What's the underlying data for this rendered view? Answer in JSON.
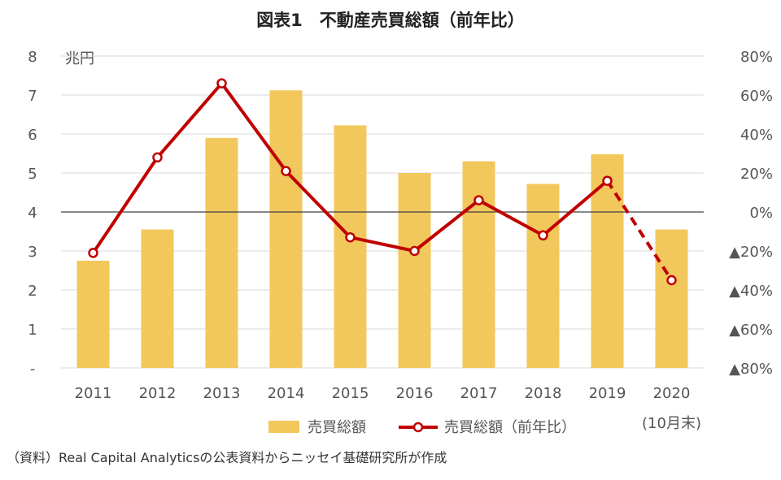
{
  "chart_data": {
    "type": "bar",
    "title": "図表1　不動産売買総額（前年比）",
    "unit_label": "兆円",
    "categories": [
      "2011",
      "2012",
      "2013",
      "2014",
      "2015",
      "2016",
      "2017",
      "2018",
      "2019",
      "2020"
    ],
    "category_note": "(10月末)",
    "left_axis": {
      "min": 0,
      "max": 8,
      "ticks": [
        "-",
        "1",
        "2",
        "3",
        "4",
        "5",
        "6",
        "7",
        "8"
      ]
    },
    "right_axis": {
      "min": -80,
      "max": 80,
      "ticks": [
        "▲80%",
        "▲60%",
        "▲40%",
        "▲20%",
        "0%",
        "20%",
        "40%",
        "60%",
        "80%"
      ]
    },
    "series": [
      {
        "name": "売買総額",
        "type": "bar",
        "axis": "left",
        "color": "#F2C75C",
        "values": [
          2.75,
          3.55,
          5.9,
          7.12,
          6.22,
          5.0,
          5.3,
          4.72,
          5.48,
          3.55
        ]
      },
      {
        "name": "売買総額（前年比）",
        "type": "line",
        "axis": "right",
        "color": "#C00000",
        "values": [
          -21,
          28,
          66,
          21,
          -13,
          -20,
          6,
          -12,
          16,
          -35
        ],
        "dashed_from_index": 8
      }
    ],
    "zero_line": true,
    "grid": true,
    "legend_position": "bottom"
  },
  "source_note": "（資料）Real Capital Analyticsの公表資料からニッセイ基礎研究所が作成"
}
